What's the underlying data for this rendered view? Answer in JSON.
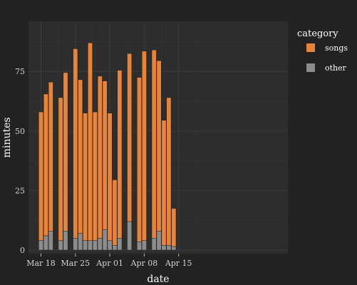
{
  "chart_data": {
    "type": "bar",
    "stacked": true,
    "xlabel": "date",
    "ylabel": "minutes",
    "x_ticks": [
      "Mar 18",
      "Mar 25",
      "Apr 01",
      "Apr 08",
      "Apr 15"
    ],
    "y_ticks": [
      0,
      25,
      50,
      75
    ],
    "ylim": [
      0,
      96
    ],
    "grid": true,
    "legend": {
      "title": "category",
      "position": "right"
    },
    "colors": {
      "songs": "#E8833A",
      "other": "#8C8C8C",
      "background": "#222222",
      "plot_background": "#2D2D2D",
      "grid": "#3C3C3C"
    },
    "dates": [
      "2024-03-18",
      "2024-03-19",
      "2024-03-20",
      "2024-03-22",
      "2024-03-23",
      "2024-03-25",
      "2024-03-26",
      "2024-03-27",
      "2024-03-28",
      "2024-03-29",
      "2024-03-30",
      "2024-03-31",
      "2024-04-01",
      "2024-04-02",
      "2024-04-03",
      "2024-04-05",
      "2024-04-07",
      "2024-04-08",
      "2024-04-10",
      "2024-04-11",
      "2024-04-12",
      "2024-04-13",
      "2024-04-14"
    ],
    "series": [
      {
        "name": "songs",
        "values": [
          54,
          59.5,
          62.5,
          60,
          66.5,
          79.5,
          64.5,
          53.5,
          83,
          54,
          68,
          62.5,
          53.5,
          27.5,
          70.5,
          70.5,
          69,
          79.5,
          79,
          71.5,
          52.5,
          62,
          16
        ]
      },
      {
        "name": "other",
        "values": [
          4,
          6,
          8,
          4,
          8,
          5,
          7,
          4,
          4,
          4,
          5,
          8.5,
          4,
          2,
          5,
          12,
          3.5,
          4,
          5,
          8,
          2,
          2,
          1.5
        ]
      }
    ]
  }
}
